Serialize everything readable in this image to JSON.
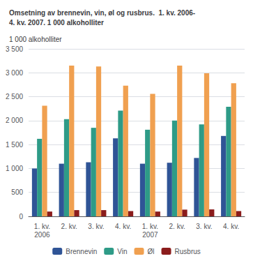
{
  "chart_data": {
    "type": "bar",
    "title": "Omsetning av brennevin, vin, øl og rusbrus.  1. kv. 2006-\n4. kv. 2007. 1 000 alkoholliter",
    "ylabel": "1 000 alkoholliter",
    "categories": [
      "1. kv.\n2006",
      "2. kv.",
      "3. kv.",
      "4. kv.",
      "1. kv.\n2007",
      "2. kv.",
      "3. kv.",
      "4. kv."
    ],
    "series": [
      {
        "name": "Brennevin",
        "color": "#2f5496",
        "values": [
          1000,
          1100,
          1130,
          1630,
          1100,
          1120,
          1220,
          1680
        ]
      },
      {
        "name": "Vin",
        "color": "#2e9b87",
        "values": [
          1620,
          2030,
          1850,
          2210,
          1810,
          2000,
          1920,
          2290
        ]
      },
      {
        "name": "Øl",
        "color": "#f0a050",
        "values": [
          2310,
          3150,
          3130,
          2730,
          2560,
          3150,
          2990,
          2780
        ]
      },
      {
        "name": "Rusbrus",
        "color": "#8b1c1c",
        "values": [
          100,
          130,
          130,
          110,
          100,
          140,
          145,
          110
        ]
      }
    ],
    "ylim": [
      0,
      3500
    ],
    "yticks": [
      0,
      500,
      {
        "value": 1000,
        "label": "1 000"
      },
      {
        "value": 1500,
        "label": "1 500"
      },
      {
        "value": 2000,
        "label": "2 000"
      },
      {
        "value": 2500,
        "label": "2 500"
      },
      {
        "value": 3000,
        "label": "3 000"
      },
      {
        "value": 3500,
        "label": "3 500"
      }
    ],
    "grid": true,
    "legend": "bottom"
  }
}
